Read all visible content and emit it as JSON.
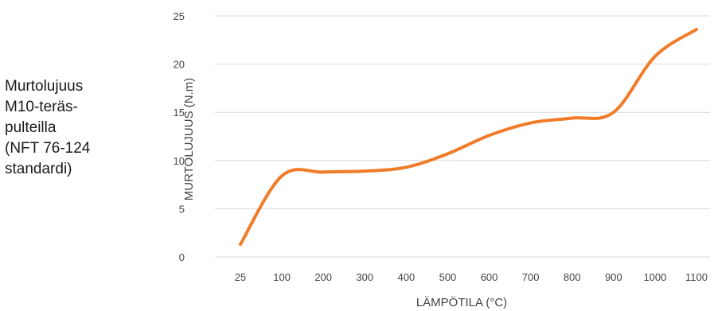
{
  "side_title": {
    "lines": [
      "Murtolujuus",
      "M10-teräs-",
      "pulteilla",
      "(NFT 76-124",
      "standardi)"
    ]
  },
  "chart_data": {
    "type": "line",
    "title": "",
    "xlabel": "LÄMPÖTILA (°C)",
    "ylabel": "MURTOLUJUUS (N.m)",
    "categories": [
      "25",
      "100",
      "200",
      "300",
      "400",
      "500",
      "600",
      "700",
      "800",
      "900",
      "1000",
      "1100"
    ],
    "ylim": [
      0,
      25
    ],
    "yticks": [
      "0",
      "5",
      "10",
      "15",
      "20",
      "25"
    ],
    "grid": true,
    "legend": "none",
    "series": [
      {
        "color": "#f07c2a",
        "values": [
          1.3,
          8.4,
          8.8,
          8.9,
          9.3,
          10.7,
          12.6,
          13.9,
          14.4,
          15.0,
          20.8,
          23.6
        ]
      }
    ]
  }
}
